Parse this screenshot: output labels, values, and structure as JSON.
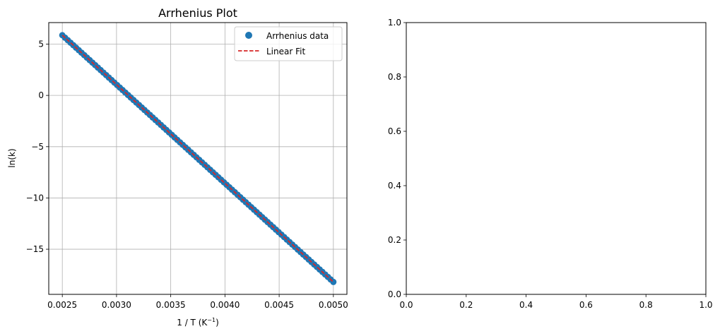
{
  "chart_data": [
    {
      "type": "scatter",
      "title": "Arrhenius Plot",
      "xlabel": "1 / T (K",
      "xlabel_superscript": "−1",
      "xlabel_suffix": ")",
      "ylabel": "ln(k)",
      "xlim": [
        0.002375,
        0.005125
      ],
      "ylim": [
        -19.4,
        7.1
      ],
      "xticks": [
        0.0025,
        0.003,
        0.0035,
        0.004,
        0.0045,
        0.005
      ],
      "xtick_labels": [
        "0.0025",
        "0.0030",
        "0.0035",
        "0.0040",
        "0.0045",
        "0.0050"
      ],
      "yticks": [
        5,
        0,
        -5,
        -10,
        -15
      ],
      "ytick_labels": [
        "5",
        "0",
        "−5",
        "−10",
        "−15"
      ],
      "grid": true,
      "legend_position": "top-right",
      "series": [
        {
          "name": "Arrhenius data",
          "kind": "scatter",
          "color": "#1f77b4",
          "x_range": [
            0.0025,
            0.005
          ],
          "y_range": [
            5.87,
            -18.19
          ],
          "count": 100
        },
        {
          "name": "Linear Fit",
          "kind": "line",
          "style": "dashed",
          "color": "#d62728",
          "x": [
            0.0025,
            0.005
          ],
          "y": [
            5.87,
            -18.19
          ]
        }
      ]
    },
    {
      "type": "scatter",
      "title": "",
      "xlim": [
        0,
        1
      ],
      "ylim": [
        0,
        1
      ],
      "xticks": [
        0,
        0.2,
        0.4,
        0.6,
        0.8,
        1
      ],
      "xtick_labels": [
        "0.0",
        "0.2",
        "0.4",
        "0.6",
        "0.8",
        "1.0"
      ],
      "yticks": [
        0,
        0.2,
        0.4,
        0.6,
        0.8,
        1
      ],
      "ytick_labels": [
        "0.0",
        "0.2",
        "0.4",
        "0.6",
        "0.8",
        "1.0"
      ],
      "grid": false,
      "series": []
    }
  ]
}
